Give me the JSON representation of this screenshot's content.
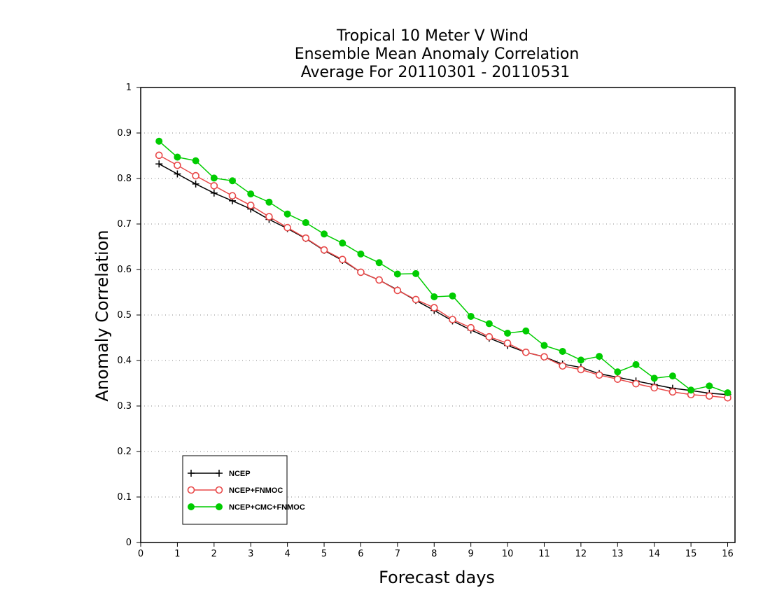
{
  "chart_data": {
    "type": "line",
    "title": [
      "Tropical 10 Meter V Wind",
      "Ensemble Mean Anomaly Correlation",
      "Average For 20110301 - 20110531"
    ],
    "xlabel": "Forecast days",
    "ylabel": "Anomaly Correlation",
    "xlim": [
      0,
      16.2
    ],
    "ylim": [
      0,
      1
    ],
    "xticks": [
      0,
      1,
      2,
      3,
      4,
      5,
      6,
      7,
      8,
      9,
      10,
      11,
      12,
      13,
      14,
      15,
      16
    ],
    "yticks": [
      0,
      0.1,
      0.2,
      0.3,
      0.4,
      0.5,
      0.6,
      0.7,
      0.8,
      0.9,
      1
    ],
    "grid": "horizontal dotted",
    "legend_position": "bottom-left",
    "x": [
      0.5,
      1.0,
      1.5,
      2.0,
      2.5,
      3.0,
      3.5,
      4.0,
      4.5,
      5.0,
      5.5,
      6.0,
      6.5,
      7.0,
      7.5,
      8.0,
      8.5,
      9.0,
      9.5,
      10.0,
      10.5,
      11.0,
      11.5,
      12.0,
      12.5,
      13.0,
      13.5,
      14.0,
      14.5,
      15.0,
      15.5,
      16.0
    ],
    "series": [
      {
        "name": "NCEP",
        "color": "#000000",
        "marker": "plus",
        "values": [
          0.832,
          0.81,
          0.788,
          0.768,
          0.751,
          0.733,
          0.71,
          0.69,
          0.668,
          0.642,
          0.62,
          0.594,
          0.577,
          0.555,
          0.532,
          0.51,
          0.487,
          0.467,
          0.449,
          0.433,
          0.418,
          0.408,
          0.392,
          0.385,
          0.371,
          0.363,
          0.355,
          0.347,
          0.339,
          0.334,
          0.328,
          0.325
        ]
      },
      {
        "name": "NCEP+FNMOC",
        "color": "#e84848",
        "marker": "open-circle",
        "values": [
          0.851,
          0.829,
          0.806,
          0.784,
          0.762,
          0.741,
          0.716,
          0.692,
          0.669,
          0.643,
          0.622,
          0.594,
          0.577,
          0.554,
          0.534,
          0.516,
          0.49,
          0.472,
          0.452,
          0.438,
          0.418,
          0.408,
          0.388,
          0.38,
          0.368,
          0.359,
          0.349,
          0.34,
          0.331,
          0.325,
          0.322,
          0.318
        ]
      },
      {
        "name": "NCEP+CMC+FNMOC",
        "color": "#00cc00",
        "marker": "filled-circle",
        "values": [
          0.882,
          0.847,
          0.839,
          0.801,
          0.795,
          0.766,
          0.748,
          0.722,
          0.703,
          0.678,
          0.658,
          0.634,
          0.615,
          0.59,
          0.591,
          0.54,
          0.542,
          0.497,
          0.481,
          0.46,
          0.465,
          0.433,
          0.42,
          0.401,
          0.409,
          0.375,
          0.391,
          0.361,
          0.366,
          0.335,
          0.344,
          0.329
        ]
      }
    ]
  }
}
